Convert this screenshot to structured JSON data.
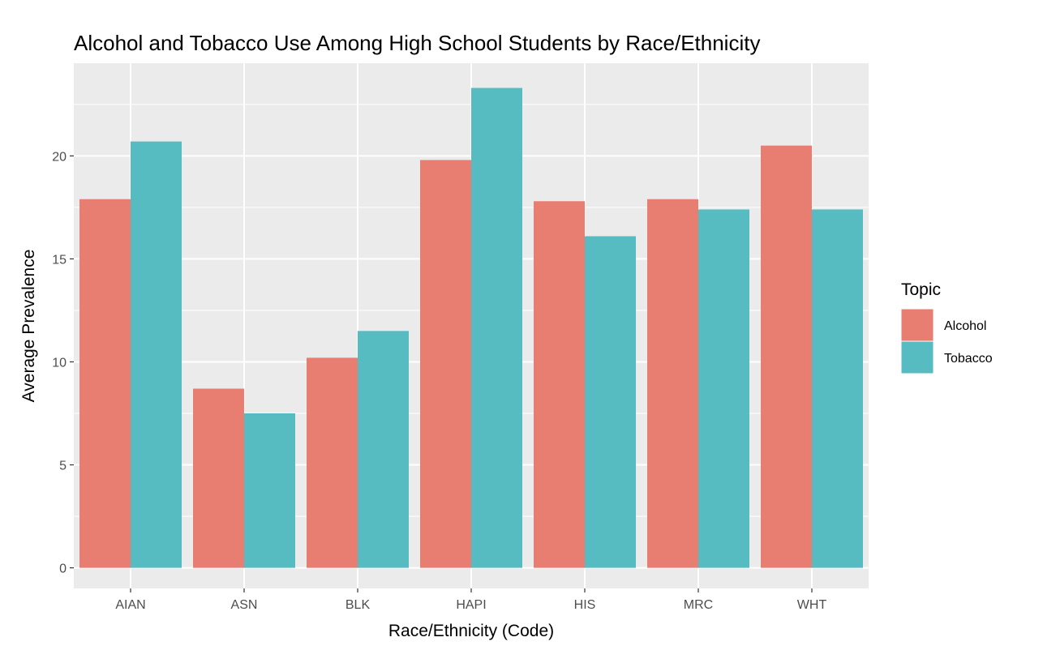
{
  "chart_data": {
    "type": "bar",
    "title": "Alcohol and Tobacco Use Among High School Students by Race/Ethnicity",
    "xlabel": "Race/Ethnicity (Code)",
    "ylabel": "Average Prevalence",
    "categories": [
      "AIAN",
      "ASN",
      "BLK",
      "HAPI",
      "HIS",
      "MRC",
      "WHT"
    ],
    "series": [
      {
        "name": "Alcohol",
        "color": "#E87D72",
        "values": [
          17.9,
          8.7,
          10.2,
          19.8,
          17.8,
          17.9,
          20.5
        ]
      },
      {
        "name": "Tobacco",
        "color": "#56BCC2",
        "values": [
          20.7,
          7.5,
          11.5,
          23.3,
          16.1,
          17.4,
          17.4
        ]
      }
    ],
    "ylim": [
      -1.0,
      24.5
    ],
    "yticks": [
      0,
      5,
      10,
      15,
      20
    ],
    "ytick_labels": [
      "0",
      "5",
      "10",
      "15",
      "20"
    ],
    "grid": true,
    "panel_color": "#EBEBEB",
    "grid_color": "#FFFFFF",
    "legend": {
      "title": "Topic",
      "position": "right"
    }
  }
}
